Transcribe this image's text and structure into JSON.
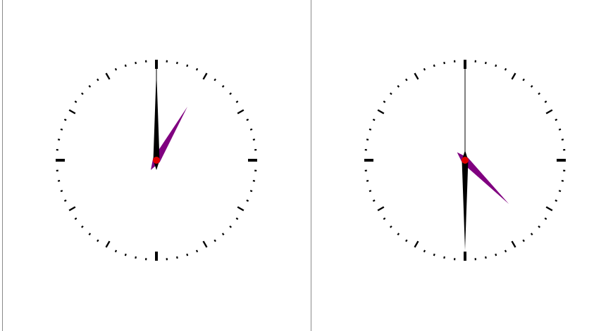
{
  "clocks": [
    {
      "hour": 1,
      "minute": 0,
      "second": 0,
      "face_color": "#ffffff",
      "tick_color": "#000000",
      "hour_hand_color": "#800080",
      "minute_hand_color": "#000000",
      "second_hand_color": "#000000",
      "center_dot_color": "#e00000"
    },
    {
      "hour": 4,
      "minute": 30,
      "second": 0,
      "face_color": "#ffffff",
      "tick_color": "#000000",
      "hour_hand_color": "#800080",
      "minute_hand_color": "#000000",
      "second_hand_color": "#000000",
      "center_dot_color": "#e00000"
    }
  ],
  "colors": {
    "background": "#ffffff",
    "panel_border": "#8a8a8a"
  }
}
